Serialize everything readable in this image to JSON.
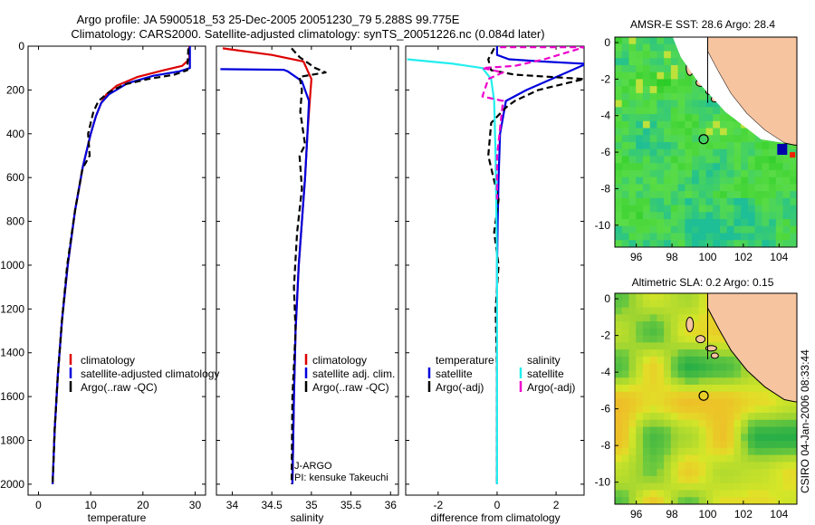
{
  "header": {
    "line1": "Argo profile: JA 5900518_53 25-Dec-2005 20051230_79 5.288S 99.775E",
    "line2": "Climatology: CARS2000. Satellite-adjusted climatology: synTS_20051226.nc (0.084d later)"
  },
  "side_label": "CSIRO 04-Jan-2006 08:33:44",
  "colors": {
    "red": "#dd0000",
    "blue": "#0000dd",
    "black": "#000000",
    "cyan": "#22eeee",
    "magenta": "#ee00cc",
    "land": "#f7c4a0"
  },
  "chart_data": [
    {
      "id": "temperature",
      "type": "line",
      "xlabel": "temperature",
      "ylabel": "",
      "xlim": [
        -2,
        32
      ],
      "ylim": [
        2050,
        0
      ],
      "xticks": [
        0,
        10,
        20,
        30
      ],
      "yticks": [
        0,
        200,
        400,
        600,
        800,
        1000,
        1200,
        1400,
        1600,
        1800,
        2000
      ],
      "legend": [
        "climatology",
        "satellite-adjusted climatology",
        "Argo(..raw -QC)"
      ],
      "series": [
        {
          "name": "climatology",
          "color": "red",
          "style": "solid",
          "x": [
            28.9,
            28.9,
            27.5,
            24,
            19,
            15,
            13,
            12,
            11,
            10,
            8.5,
            7,
            5.6,
            4.5,
            3.7,
            3.1,
            2.7
          ],
          "y": [
            0,
            60,
            90,
            110,
            140,
            180,
            220,
            260,
            320,
            400,
            550,
            750,
            1000,
            1250,
            1500,
            1750,
            2000
          ]
        },
        {
          "name": "satellite-adjusted climatology",
          "color": "blue",
          "style": "solid",
          "x": [
            29.0,
            29.0,
            27,
            22,
            17,
            13.5,
            12,
            11,
            10,
            8.5,
            7,
            5.6,
            4.5,
            3.7,
            3.1,
            2.7
          ],
          "y": [
            0,
            100,
            115,
            135,
            170,
            220,
            260,
            320,
            400,
            550,
            750,
            1000,
            1250,
            1500,
            1750,
            2000
          ]
        },
        {
          "name": "Argo(..raw -QC)",
          "color": "black",
          "style": "dashed",
          "x": [
            28.7,
            28.5,
            26,
            21,
            16.5,
            13.5,
            11.5,
            10.5,
            9.5,
            9.8,
            8.4,
            7.0,
            5.5,
            4.5,
            3.7,
            3.1,
            2.7
          ],
          "y": [
            10,
            110,
            130,
            150,
            175,
            210,
            250,
            300,
            400,
            500,
            560,
            750,
            1000,
            1250,
            1500,
            1750,
            2000
          ]
        }
      ]
    },
    {
      "id": "salinity",
      "type": "line",
      "xlabel": "salinity",
      "xlim": [
        33.8,
        36.1
      ],
      "ylim": [
        2050,
        0
      ],
      "xticks": [
        34,
        34.5,
        35,
        35.5,
        36
      ],
      "legend": [
        "climatology",
        "satellite adj. clim.",
        "Argo(..raw -QC)"
      ],
      "annotation": [
        "J-ARGO",
        "PI: kensuke Takeuchi"
      ],
      "series": [
        {
          "name": "climatology",
          "color": "red",
          "style": "solid",
          "x": [
            33.88,
            34.5,
            34.9,
            35.0,
            34.98,
            34.95,
            34.92,
            34.88,
            34.84,
            34.8,
            34.78,
            34.76
          ],
          "y": [
            10,
            40,
            70,
            150,
            250,
            400,
            600,
            800,
            1000,
            1300,
            1600,
            2000
          ]
        },
        {
          "name": "satellite adj. clim.",
          "color": "blue",
          "style": "solid",
          "x": [
            33.85,
            34.65,
            34.7,
            34.88,
            34.97,
            34.95,
            34.92,
            34.88,
            34.84,
            34.8,
            34.78,
            34.76
          ],
          "y": [
            105,
            108,
            115,
            160,
            250,
            400,
            600,
            800,
            1000,
            1300,
            1600,
            2000
          ]
        },
        {
          "name": "Argo(..raw -QC)",
          "color": "black",
          "style": "dashed",
          "x": [
            34.75,
            34.85,
            35.05,
            35.18,
            34.85,
            34.88,
            34.86,
            34.92,
            34.85,
            34.88,
            34.82,
            34.78,
            34.8,
            34.76,
            34.75
          ],
          "y": [
            10,
            50,
            100,
            120,
            140,
            200,
            300,
            450,
            500,
            650,
            850,
            1100,
            1300,
            1600,
            2000
          ]
        }
      ]
    },
    {
      "id": "difference",
      "type": "line",
      "xlabel": "difference from climatology",
      "xlim": [
        -3.1,
        2.95
      ],
      "ylim": [
        2050,
        0
      ],
      "xticks": [
        -2,
        0,
        2
      ],
      "legend": [
        "temperature",
        "satellite",
        "Argo(-adj)",
        "salinity",
        "satellite",
        "Argo(-adj)"
      ],
      "series": [
        {
          "name": "temperature satellite",
          "color": "blue",
          "style": "solid",
          "x": [
            0.0,
            0.0,
            0.4,
            1.5,
            2.95,
            2.95,
            1.0,
            0.3,
            0.1,
            0.05,
            0.02,
            0.0,
            0.0,
            0.0
          ],
          "y": [
            0,
            40,
            60,
            70,
            80,
            85,
            200,
            250,
            400,
            600,
            800,
            1000,
            1500,
            2000
          ]
        },
        {
          "name": "temperature Argo(-adj)",
          "color": "black",
          "style": "dashed",
          "x": [
            -0.1,
            -0.3,
            -0.2,
            0.6,
            2.95,
            1.4,
            0.6,
            0.3,
            -0.2,
            -0.3,
            0.05,
            -0.1,
            0.05,
            -0.05,
            0.0,
            0.0
          ],
          "y": [
            10,
            60,
            110,
            130,
            150,
            200,
            250,
            280,
            350,
            500,
            700,
            850,
            1000,
            1200,
            1500,
            2000
          ]
        },
        {
          "name": "salinity satellite",
          "color": "cyan",
          "style": "solid",
          "x": [
            -3.05,
            -1.5,
            -0.5,
            -0.2,
            -0.1,
            -0.05,
            0.0,
            0.0
          ],
          "y": [
            60,
            80,
            100,
            150,
            250,
            500,
            1000,
            2000
          ]
        },
        {
          "name": "salinity Argo(-adj)",
          "color": "magenta",
          "style": "dashed",
          "x": [
            0.1,
            2.95,
            1.6,
            0.6,
            -0.5,
            0.2,
            -0.3,
            -0.5,
            0.2,
            0.0,
            0.0
          ],
          "y": [
            5,
            5,
            60,
            90,
            100,
            120,
            150,
            230,
            250,
            500,
            700
          ]
        }
      ]
    },
    {
      "id": "amsre_sst_map",
      "type": "heatmap",
      "title": "AMSR-E SST: 28.6 Argo: 28.4",
      "xlim": [
        94.8,
        105
      ],
      "ylim": [
        -11.2,
        0.3
      ],
      "xticks": [
        96,
        98,
        100,
        102,
        104
      ],
      "yticks": [
        0,
        -2,
        -4,
        -6,
        -8,
        -10
      ],
      "marker": {
        "lon": 99.775,
        "lat": -5.288
      }
    },
    {
      "id": "altimetric_sla_map",
      "type": "heatmap",
      "title": "Altimetric SLA: 0.2 Argo: 0.15",
      "xlim": [
        94.8,
        105
      ],
      "ylim": [
        -11.2,
        0.3
      ],
      "xticks": [
        96,
        98,
        100,
        102,
        104
      ],
      "yticks": [
        0,
        -2,
        -4,
        -6,
        -8,
        -10
      ],
      "marker": {
        "lon": 99.775,
        "lat": -5.288
      }
    }
  ]
}
